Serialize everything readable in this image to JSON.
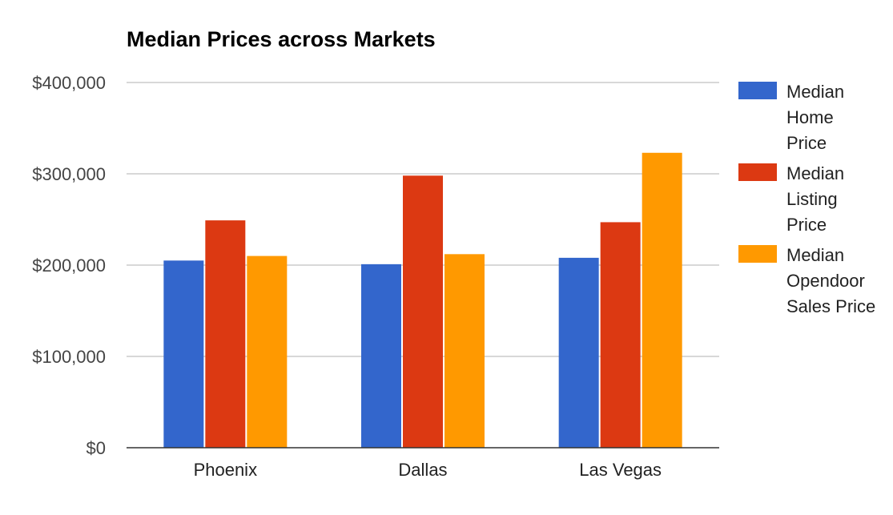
{
  "chart_data": {
    "type": "bar",
    "title": "Median Prices across Markets",
    "xlabel": "",
    "ylabel": "",
    "categories": [
      "Phoenix",
      "Dallas",
      "Las Vegas"
    ],
    "series": [
      {
        "name": "Median Home Price",
        "legend_lines": [
          "Median",
          "Home",
          "Price"
        ],
        "color": "#3366cc",
        "values": [
          205000,
          201000,
          208000
        ]
      },
      {
        "name": "Median Listing Price",
        "legend_lines": [
          "Median",
          "Listing",
          "Price"
        ],
        "color": "#dc3912",
        "values": [
          249000,
          298000,
          247000
        ]
      },
      {
        "name": "Median Opendoor Sales Price",
        "legend_lines": [
          "Median",
          "Opendoor",
          "Sales Price"
        ],
        "color": "#ff9900",
        "values": [
          210000,
          212000,
          323000
        ]
      }
    ],
    "ylim": [
      0,
      400000
    ],
    "y_ticks": [
      0,
      100000,
      200000,
      300000,
      400000
    ],
    "y_tick_labels": [
      "$0",
      "$100,000",
      "$200,000",
      "$300,000",
      "$400,000"
    ],
    "grid": true,
    "legend_position": "right"
  }
}
